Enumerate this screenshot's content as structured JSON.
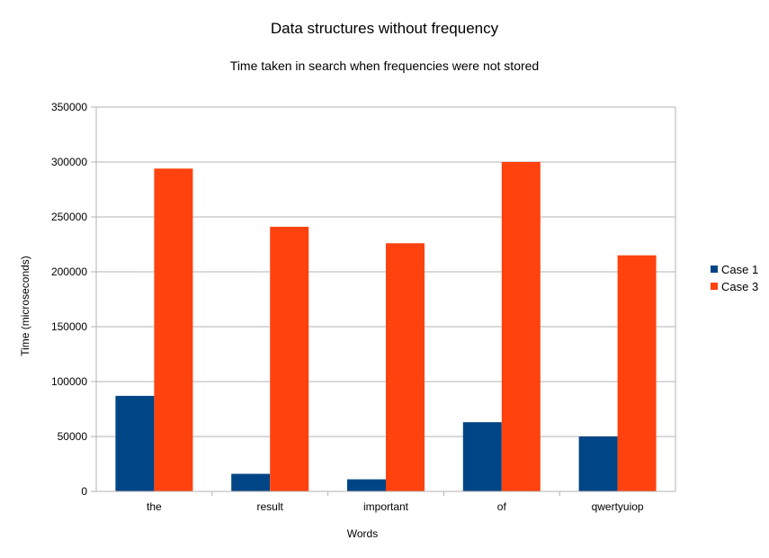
{
  "chart_data": {
    "type": "bar",
    "title": "Data structures without frequency",
    "subtitle": "Time taken in search when frequencies were not stored",
    "xlabel": "Words",
    "ylabel": "Time (microseconds)",
    "categories": [
      "the",
      "result",
      "important",
      "of",
      "qwertyuiop"
    ],
    "series": [
      {
        "name": "Case 1",
        "color": "#004586",
        "values": [
          87000,
          16000,
          11000,
          63000,
          50000
        ]
      },
      {
        "name": "Case 3",
        "color": "#ff420e",
        "values": [
          294000,
          241000,
          226000,
          300000,
          215000
        ]
      }
    ],
    "ylim": [
      0,
      350000
    ],
    "yticks": [
      0,
      50000,
      100000,
      150000,
      200000,
      250000,
      300000,
      350000
    ],
    "grid": true,
    "legend_position": "right"
  }
}
